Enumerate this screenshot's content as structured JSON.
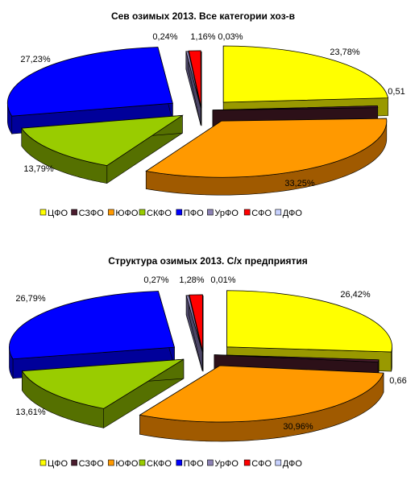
{
  "chart_data": [
    {
      "type": "pie",
      "title": "Сев озимых 2013. Все категории хоз-в",
      "categories": [
        "ЦФО",
        "СЗФО",
        "ЮФО",
        "СКФО",
        "ПФО",
        "УрФО",
        "СФО",
        "ДФО"
      ],
      "values": [
        23.78,
        0.51,
        33.25,
        13.79,
        27.23,
        0.24,
        1.16,
        0.03
      ],
      "data_labels": [
        "23,78%",
        "0,51",
        "33,25%",
        "13,79%",
        "27,23%",
        "0,24%",
        "1,16%",
        "0,03%"
      ],
      "legend": "bottom",
      "exploded": true,
      "three_d": true
    },
    {
      "type": "pie",
      "title": "Структура озимых 2013. С/х предприятия",
      "categories": [
        "ЦФО",
        "СЗФО",
        "ЮФО",
        "СКФО",
        "ПФО",
        "УрФО",
        "СФО",
        "ДФО"
      ],
      "values": [
        26.42,
        0.66,
        30.96,
        13.61,
        26.79,
        0.27,
        1.28,
        0.01
      ],
      "data_labels": [
        "26,42%",
        "0,66",
        "30,96%",
        "13,61%",
        "26,79%",
        "0,27%",
        "1,28%",
        "0,01%"
      ],
      "legend": "bottom",
      "exploded": true,
      "three_d": true
    }
  ],
  "colors": [
    "#FFFF00",
    "#4A1C2E",
    "#FF9900",
    "#99CC00",
    "#0000FF",
    "#8C82B4",
    "#FF0000",
    "#C8D2FF"
  ],
  "side_colors": [
    "#999900",
    "#2C1018",
    "#A05A00",
    "#557000",
    "#00009A",
    "#4C4666",
    "#9A0000",
    "#8890AA"
  ]
}
